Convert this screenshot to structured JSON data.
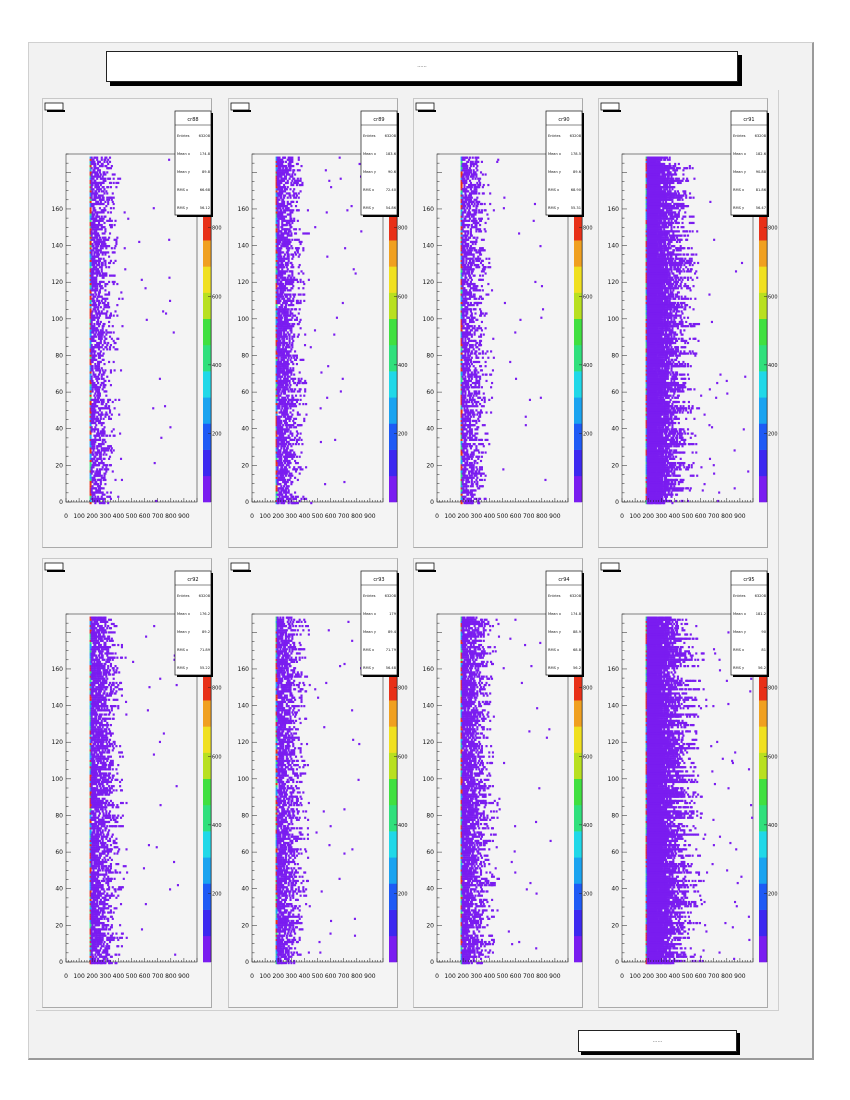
{
  "page": {
    "title": "......",
    "footer": "......"
  },
  "colors": {
    "frame": "#f2f2f2",
    "marker": "#7a1cf0",
    "palette": [
      "#7a1cf0",
      "#3c28f0",
      "#1e5af5",
      "#1aa3f0",
      "#20d8e8",
      "#30e07c",
      "#40e040",
      "#b8e020",
      "#f0e020",
      "#f0a020",
      "#e83018"
    ]
  },
  "chart_data": [
    {
      "type": "heatmap",
      "name": "cr88",
      "xlim": [
        0,
        1000
      ],
      "ylim": [
        0,
        190
      ],
      "x_ticks": [
        "0",
        "100",
        "200",
        "300",
        "400",
        "500",
        "600",
        "700",
        "800",
        "900"
      ],
      "y_ticks": [
        "0",
        "20",
        "40",
        "60",
        "80",
        "100",
        "120",
        "140",
        "160"
      ],
      "z_ticks": [
        "200",
        "400",
        "600",
        "800"
      ],
      "stats": [
        {
          "label": "Entries",
          "value": "63208"
        },
        {
          "label": "Mean x",
          "value": "174.8"
        },
        {
          "label": "Mean y",
          "value": "89.8"
        },
        {
          "label": "RMS x",
          "value": "66.68"
        },
        {
          "label": "RMS y",
          "value": "56.12"
        }
      ],
      "onset": 180,
      "density": 0.55,
      "tail": 190
    },
    {
      "type": "heatmap",
      "name": "cr89",
      "xlim": [
        0,
        1000
      ],
      "ylim": [
        0,
        190
      ],
      "x_ticks": [
        "0",
        "100",
        "200",
        "300",
        "400",
        "500",
        "600",
        "700",
        "800",
        "900"
      ],
      "y_ticks": [
        "0",
        "20",
        "40",
        "60",
        "80",
        "100",
        "120",
        "140",
        "160"
      ],
      "z_ticks": [
        "200",
        "400",
        "600",
        "800"
      ],
      "stats": [
        {
          "label": "Entries",
          "value": "63208"
        },
        {
          "label": "Mean x",
          "value": "183.6"
        },
        {
          "label": "Mean y",
          "value": "90.6"
        },
        {
          "label": "RMS x",
          "value": "72.40"
        },
        {
          "label": "RMS y",
          "value": "54.86"
        }
      ],
      "onset": 180,
      "density": 0.7,
      "tail": 200
    },
    {
      "type": "heatmap",
      "name": "cr90",
      "xlim": [
        0,
        1000
      ],
      "ylim": [
        0,
        190
      ],
      "x_ticks": [
        "0",
        "100",
        "200",
        "300",
        "400",
        "500",
        "600",
        "700",
        "800",
        "900"
      ],
      "y_ticks": [
        "0",
        "20",
        "40",
        "60",
        "80",
        "100",
        "120",
        "140",
        "160"
      ],
      "z_ticks": [
        "200",
        "400",
        "600",
        "800"
      ],
      "stats": [
        {
          "label": "Entries",
          "value": "63208"
        },
        {
          "label": "Mean x",
          "value": "178.5"
        },
        {
          "label": "Mean y",
          "value": "89.6"
        },
        {
          "label": "RMS x",
          "value": "68.90"
        },
        {
          "label": "RMS y",
          "value": "55.31"
        }
      ],
      "onset": 180,
      "density": 0.6,
      "tail": 200
    },
    {
      "type": "heatmap",
      "name": "cr91",
      "xlim": [
        0,
        1000
      ],
      "ylim": [
        0,
        190
      ],
      "x_ticks": [
        "0",
        "100",
        "200",
        "300",
        "400",
        "500",
        "600",
        "700",
        "800",
        "900"
      ],
      "y_ticks": [
        "0",
        "20",
        "40",
        "60",
        "80",
        "100",
        "120",
        "140",
        "160"
      ],
      "z_ticks": [
        "200",
        "400",
        "600",
        "800"
      ],
      "stats": [
        {
          "label": "Entries",
          "value": "63208"
        },
        {
          "label": "Mean x",
          "value": "182.6"
        },
        {
          "label": "Mean y",
          "value": "90.88"
        },
        {
          "label": "RMS x",
          "value": "81.86"
        },
        {
          "label": "RMS y",
          "value": "56.47"
        }
      ],
      "onset": 180,
      "density": 1.3,
      "tail": 330
    },
    {
      "type": "heatmap",
      "name": "cr92",
      "xlim": [
        0,
        1000
      ],
      "ylim": [
        0,
        190
      ],
      "x_ticks": [
        "0",
        "100",
        "200",
        "300",
        "400",
        "500",
        "600",
        "700",
        "800",
        "900"
      ],
      "y_ticks": [
        "0",
        "20",
        "40",
        "60",
        "80",
        "100",
        "120",
        "140",
        "160"
      ],
      "z_ticks": [
        "200",
        "400",
        "600",
        "800"
      ],
      "stats": [
        {
          "label": "Entries",
          "value": "63208"
        },
        {
          "label": "Mean x",
          "value": "176.2"
        },
        {
          "label": "Mean y",
          "value": "89.2"
        },
        {
          "label": "RMS x",
          "value": "71.89"
        },
        {
          "label": "RMS y",
          "value": "55.22"
        }
      ],
      "onset": 180,
      "density": 0.75,
      "tail": 220
    },
    {
      "type": "heatmap",
      "name": "cr93",
      "xlim": [
        0,
        1000
      ],
      "ylim": [
        0,
        190
      ],
      "x_ticks": [
        "0",
        "100",
        "200",
        "300",
        "400",
        "500",
        "600",
        "700",
        "800",
        "900"
      ],
      "y_ticks": [
        "0",
        "20",
        "40",
        "60",
        "80",
        "100",
        "120",
        "140",
        "160"
      ],
      "z_ticks": [
        "200",
        "400",
        "600",
        "800"
      ],
      "stats": [
        {
          "label": "Entries",
          "value": "63208"
        },
        {
          "label": "Mean x",
          "value": "179"
        },
        {
          "label": "Mean y",
          "value": "89.4"
        },
        {
          "label": "RMS x",
          "value": "71.79"
        },
        {
          "label": "RMS y",
          "value": "56.48"
        }
      ],
      "onset": 180,
      "density": 0.7,
      "tail": 210
    },
    {
      "type": "heatmap",
      "name": "cr94",
      "xlim": [
        0,
        1000
      ],
      "ylim": [
        0,
        190
      ],
      "x_ticks": [
        "0",
        "100",
        "200",
        "300",
        "400",
        "500",
        "600",
        "700",
        "800",
        "900"
      ],
      "y_ticks": [
        "0",
        "20",
        "40",
        "60",
        "80",
        "100",
        "120",
        "140",
        "160"
      ],
      "z_ticks": [
        "200",
        "400",
        "600",
        "800"
      ],
      "stats": [
        {
          "label": "Entries",
          "value": "63208"
        },
        {
          "label": "Mean x",
          "value": "174.8"
        },
        {
          "label": "Mean y",
          "value": "88.9"
        },
        {
          "label": "RMS x",
          "value": "68.8"
        },
        {
          "label": "RMS y",
          "value": "56.2"
        }
      ],
      "onset": 180,
      "density": 0.8,
      "tail": 230
    },
    {
      "type": "heatmap",
      "name": "cr95",
      "xlim": [
        0,
        1000
      ],
      "ylim": [
        0,
        190
      ],
      "x_ticks": [
        "0",
        "100",
        "200",
        "300",
        "400",
        "500",
        "600",
        "700",
        "800",
        "900"
      ],
      "y_ticks": [
        "0",
        "20",
        "40",
        "60",
        "80",
        "100",
        "120",
        "140",
        "160"
      ],
      "z_ticks": [
        "200",
        "400",
        "600",
        "800"
      ],
      "stats": [
        {
          "label": "Entries",
          "value": "63208"
        },
        {
          "label": "Mean x",
          "value": "181.2"
        },
        {
          "label": "Mean y",
          "value": "90"
        },
        {
          "label": "RMS x",
          "value": "81"
        },
        {
          "label": "RMS y",
          "value": "56.2"
        }
      ],
      "onset": 180,
      "density": 1.4,
      "tail": 360
    }
  ]
}
